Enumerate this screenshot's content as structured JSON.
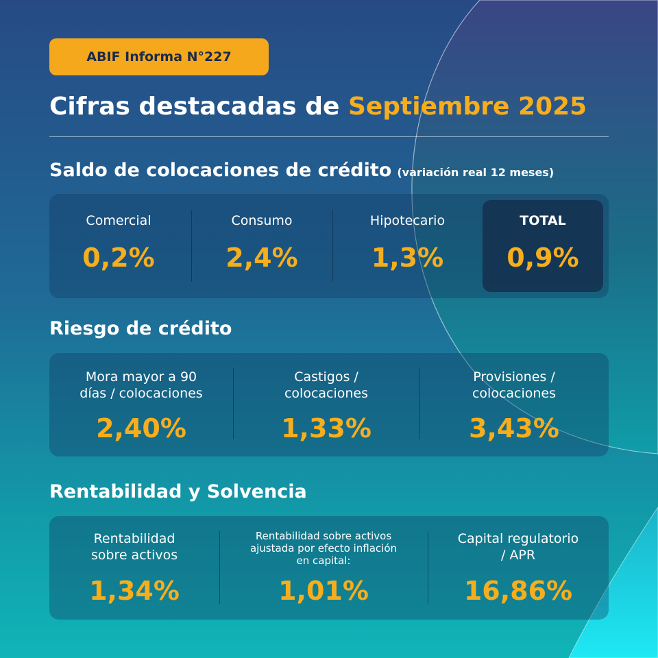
{
  "badge": "ABIF Informa N°227",
  "title": {
    "main": "Cifras destacadas de",
    "accent": "Septiembre 2025"
  },
  "sections": {
    "credit_balance": {
      "title": "Saldo de colocaciones de crédito",
      "note": "(variación real 12 meses)",
      "items": [
        {
          "label": "Comercial",
          "value": "0,2%"
        },
        {
          "label": "Consumo",
          "value": "2,4%"
        },
        {
          "label": "Hipotecario",
          "value": "1,3%"
        },
        {
          "label": "TOTAL",
          "value": "0,9%"
        }
      ]
    },
    "credit_risk": {
      "title": "Riesgo de crédito",
      "items": [
        {
          "label_line1": "Mora mayor a 90",
          "label_line2": "días / colocaciones",
          "value": "2,40%"
        },
        {
          "label_line1": "Castigos /",
          "label_line2": "colocaciones",
          "value": "1,33%"
        },
        {
          "label_line1": "Provisiones /",
          "label_line2": "colocaciones",
          "value": "3,43%"
        }
      ]
    },
    "profitability": {
      "title": "Rentabilidad y Solvencia",
      "items": [
        {
          "label_line1": "Rentabilidad",
          "label_line2": "sobre activos",
          "value": "1,34%"
        },
        {
          "label_line1": "Rentabilidad sobre activos",
          "label_line2": "ajustada por efecto inflación",
          "label_line3": "en capital:",
          "value": "1,01%"
        },
        {
          "label_line1": "Capital regulatorio",
          "label_line2": "/ APR",
          "value": "16,86%"
        }
      ]
    }
  },
  "colors": {
    "accent": "#f7ae1d",
    "badge_bg": "#f5a81c",
    "background_top": "#274a85",
    "background_bottom": "#10b5b8"
  }
}
